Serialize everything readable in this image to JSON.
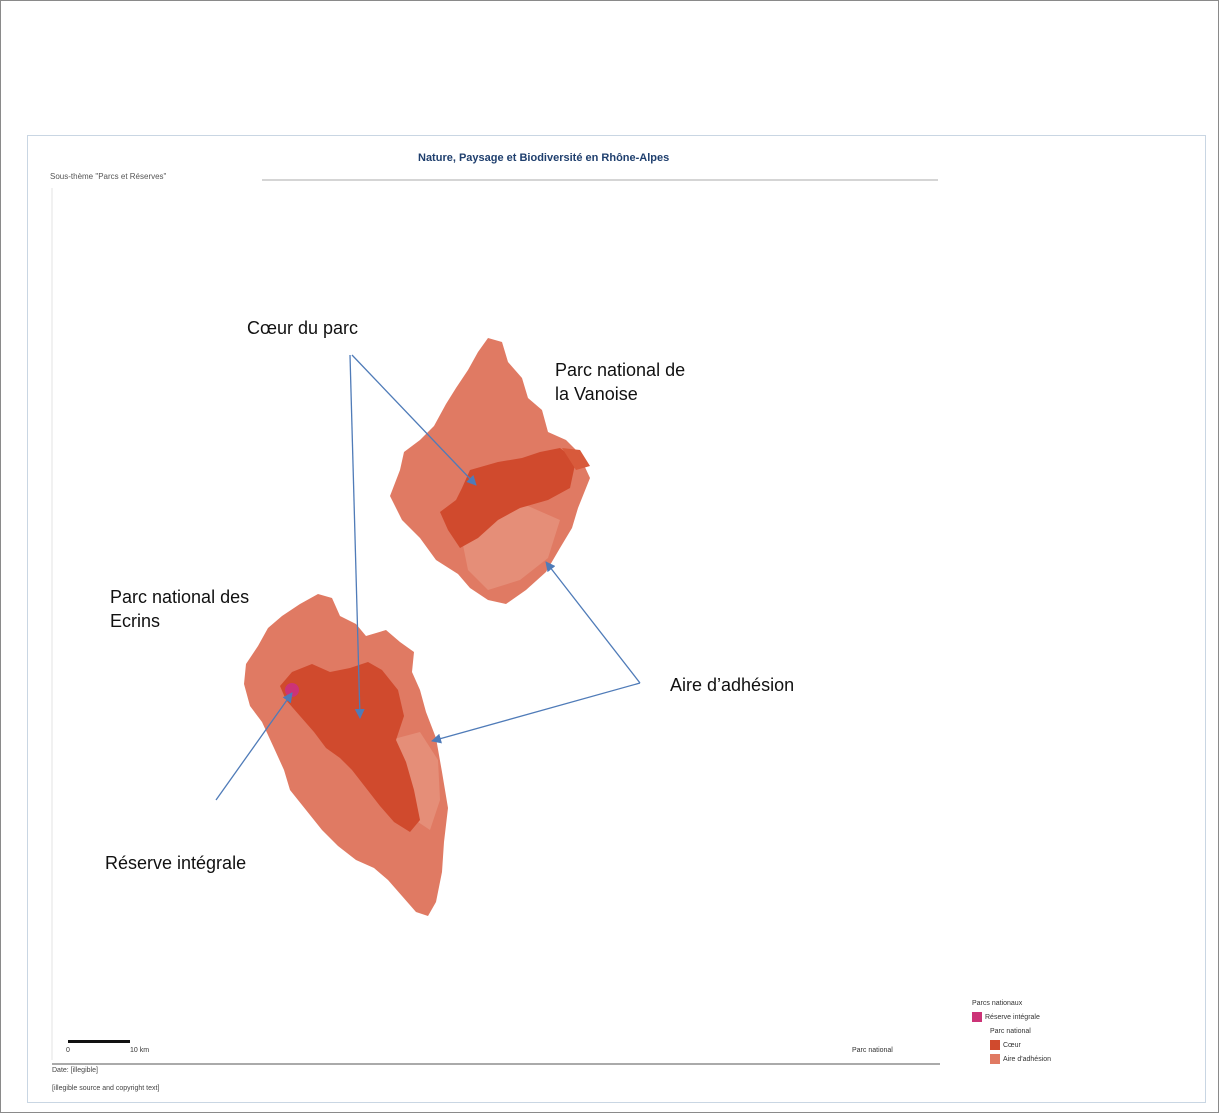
{
  "map": {
    "title": "Nature, Paysage et Biodiversité en Rhône-Alpes",
    "subtitle": "Sous-thème \"Parcs et Réserves\"",
    "scale_label_start": "0",
    "scale_label_end": "10 km",
    "bottom_right_text": "Parc national",
    "footer_line1": "Date: [illegible]",
    "footer_line2": "[illegible source and copyright text]"
  },
  "annotations": {
    "coeur": "Cœur du parc",
    "vanoise_line1": "Parc national de",
    "vanoise_line2": "la Vanoise",
    "ecrins_line1": "Parc national des",
    "ecrins_line2": "Ecrins",
    "aire": "Aire d’adhésion",
    "reserve": "Réserve intégrale"
  },
  "legend": {
    "title": "Parcs nationaux",
    "reserve_label": "Réserve intégrale",
    "group_label": "Parc national",
    "coeur_label": "Cœur",
    "aire_label": "Aire d'adhésion"
  },
  "colors": {
    "aire": "#e07a63",
    "aire_light": "#e58e78",
    "coeur": "#d04a2d",
    "reserve": "#cc3377",
    "arrow": "#4f7bb8"
  }
}
